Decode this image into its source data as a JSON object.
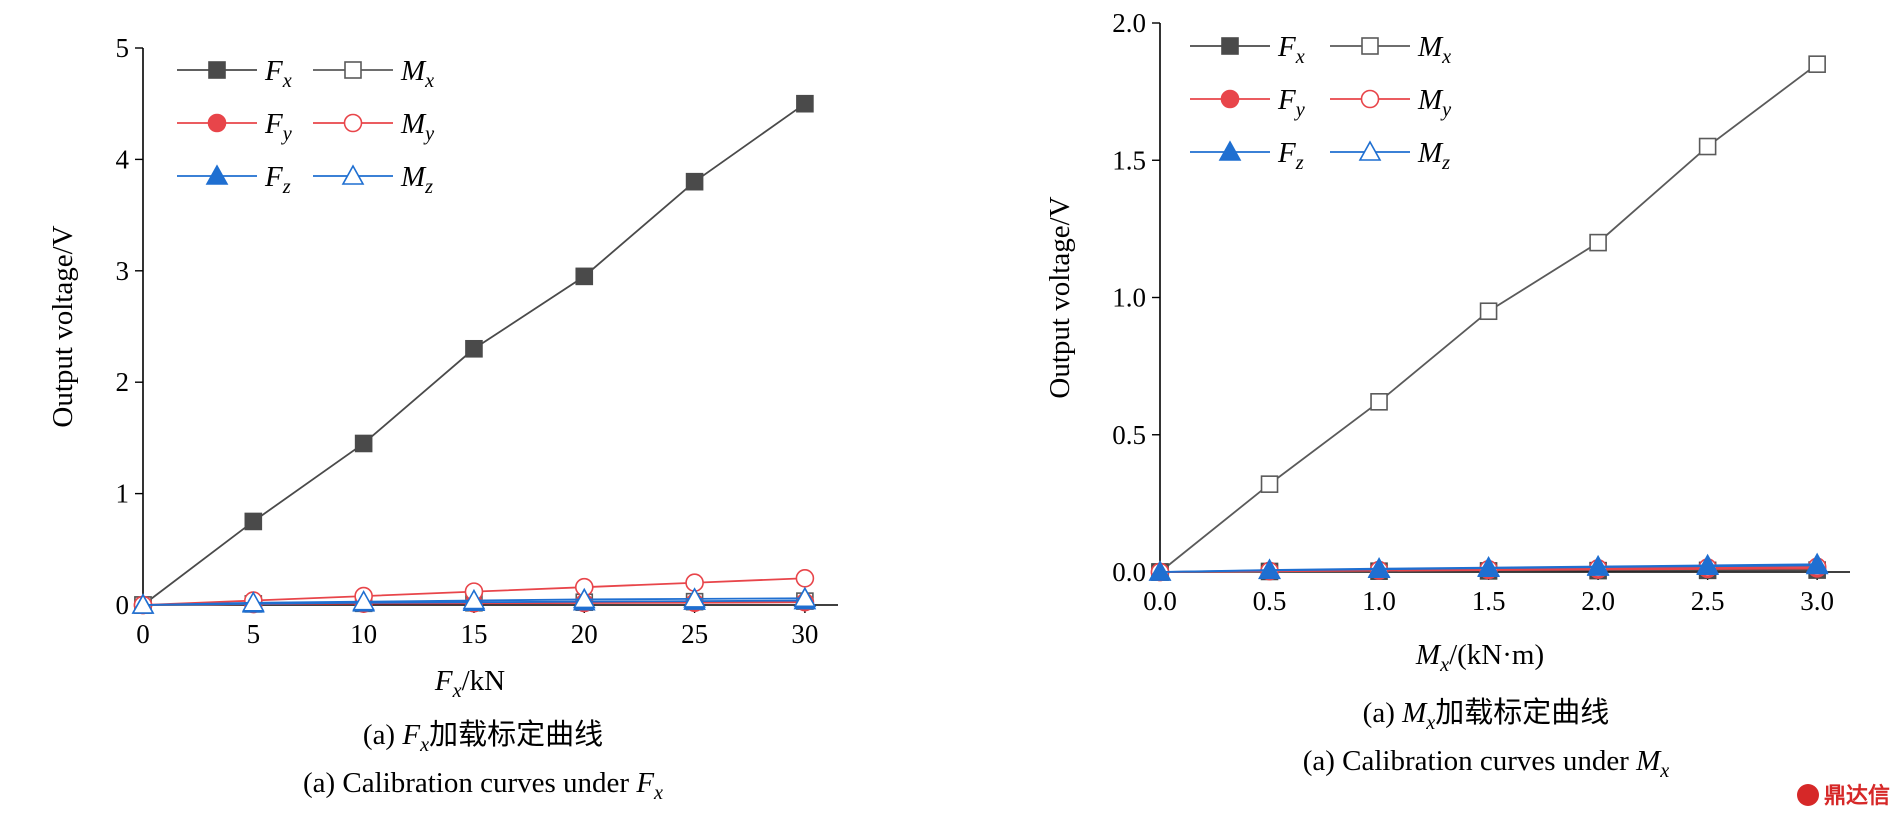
{
  "colors": {
    "Fx": "#4a4a4a",
    "Mx": "#5a5a5a",
    "Fy": "#e8454a",
    "My": "#e8454a",
    "Fz": "#1f6fd1",
    "Mz": "#1f6fd1"
  },
  "legend": [
    {
      "key": "Fx",
      "sym": "F",
      "sub": "x",
      "marker": "square",
      "filled": true
    },
    {
      "key": "Mx",
      "sym": "M",
      "sub": "x",
      "marker": "square",
      "filled": false
    },
    {
      "key": "Fy",
      "sym": "F",
      "sub": "y",
      "marker": "circle",
      "filled": true
    },
    {
      "key": "My",
      "sym": "M",
      "sub": "y",
      "marker": "circle",
      "filled": false
    },
    {
      "key": "Fz",
      "sym": "F",
      "sub": "z",
      "marker": "triangle",
      "filled": true
    },
    {
      "key": "Mz",
      "sym": "M",
      "sub": "z",
      "marker": "triangle",
      "filled": false
    }
  ],
  "chart_data": [
    {
      "type": "line",
      "ylabel": "Output voltage/V",
      "xlabel": {
        "sym": "F",
        "sub": "x",
        "rest": "/kN"
      },
      "caption_cn": {
        "pre": "(a) ",
        "sym": "F",
        "sub": "x",
        "rest": "加载标定曲线"
      },
      "caption_en": {
        "pre": "(a) Calibration curves under ",
        "sym": "F",
        "sub": "x",
        "rest": ""
      },
      "xlim": [
        0,
        31.5
      ],
      "ylim": [
        0,
        5
      ],
      "xticks": [
        0,
        5,
        10,
        15,
        20,
        25,
        30
      ],
      "xtick_labels": [
        "0",
        "5",
        "10",
        "15",
        "20",
        "25",
        "30"
      ],
      "yticks": [
        0,
        1,
        2,
        3,
        4,
        5
      ],
      "ytick_labels": [
        "0",
        "1",
        "2",
        "3",
        "4",
        "5"
      ],
      "legend_position": "top-left",
      "grid": false,
      "x": [
        0,
        5,
        10,
        15,
        20,
        25,
        30
      ],
      "series": [
        {
          "key": "Fx",
          "values": [
            0,
            0.75,
            1.45,
            2.3,
            2.95,
            3.8,
            4.5
          ]
        },
        {
          "key": "Mx",
          "values": [
            0,
            0.01,
            0.015,
            0.02,
            0.025,
            0.03,
            0.035
          ]
        },
        {
          "key": "Fy",
          "values": [
            0,
            0.008,
            0.012,
            0.015,
            0.018,
            0.02,
            0.025
          ]
        },
        {
          "key": "My",
          "values": [
            0,
            0.04,
            0.08,
            0.12,
            0.16,
            0.2,
            0.24
          ]
        },
        {
          "key": "Fz",
          "values": [
            0,
            0.01,
            0.02,
            0.025,
            0.03,
            0.035,
            0.04
          ]
        },
        {
          "key": "Mz",
          "values": [
            0,
            0.02,
            0.03,
            0.04,
            0.05,
            0.055,
            0.06
          ]
        }
      ]
    },
    {
      "type": "line",
      "ylabel": "Output voltage/V",
      "xlabel": {
        "sym": "M",
        "sub": "x",
        "rest": "/(kN·m)"
      },
      "caption_cn": {
        "pre": "(a) ",
        "sym": "M",
        "sub": "x",
        "rest": "加载标定曲线"
      },
      "caption_en": {
        "pre": "(a) Calibration curves under ",
        "sym": "M",
        "sub": "x",
        "rest": ""
      },
      "xlim": [
        0,
        3.15
      ],
      "ylim": [
        0,
        2.0
      ],
      "xticks": [
        0,
        0.5,
        1.0,
        1.5,
        2.0,
        2.5,
        3.0
      ],
      "xtick_labels": [
        "0.0",
        "0.5",
        "1.0",
        "1.5",
        "2.0",
        "2.5",
        "3.0"
      ],
      "yticks": [
        0,
        0.5,
        1.0,
        1.5,
        2.0
      ],
      "ytick_labels": [
        "0.0",
        "0.5",
        "1.0",
        "1.5",
        "2.0"
      ],
      "legend_position": "top-left",
      "grid": false,
      "x": [
        0,
        0.5,
        1.0,
        1.5,
        2.0,
        2.5,
        3.0
      ],
      "series": [
        {
          "key": "Mx",
          "values": [
            0,
            0.32,
            0.62,
            0.95,
            1.2,
            1.55,
            1.85
          ]
        },
        {
          "key": "Fx",
          "values": [
            0,
            0.002,
            0.003,
            0.004,
            0.005,
            0.006,
            0.007
          ]
        },
        {
          "key": "Fy",
          "values": [
            0,
            0.003,
            0.005,
            0.007,
            0.009,
            0.011,
            0.013
          ]
        },
        {
          "key": "My",
          "values": [
            0,
            0.004,
            0.007,
            0.01,
            0.013,
            0.016,
            0.019
          ]
        },
        {
          "key": "Mz",
          "values": [
            0,
            0.006,
            0.01,
            0.014,
            0.018,
            0.021,
            0.024
          ]
        },
        {
          "key": "Fz",
          "values": [
            0,
            0.007,
            0.012,
            0.016,
            0.02,
            0.024,
            0.028
          ]
        }
      ]
    }
  ],
  "watermark": "鼎达信"
}
